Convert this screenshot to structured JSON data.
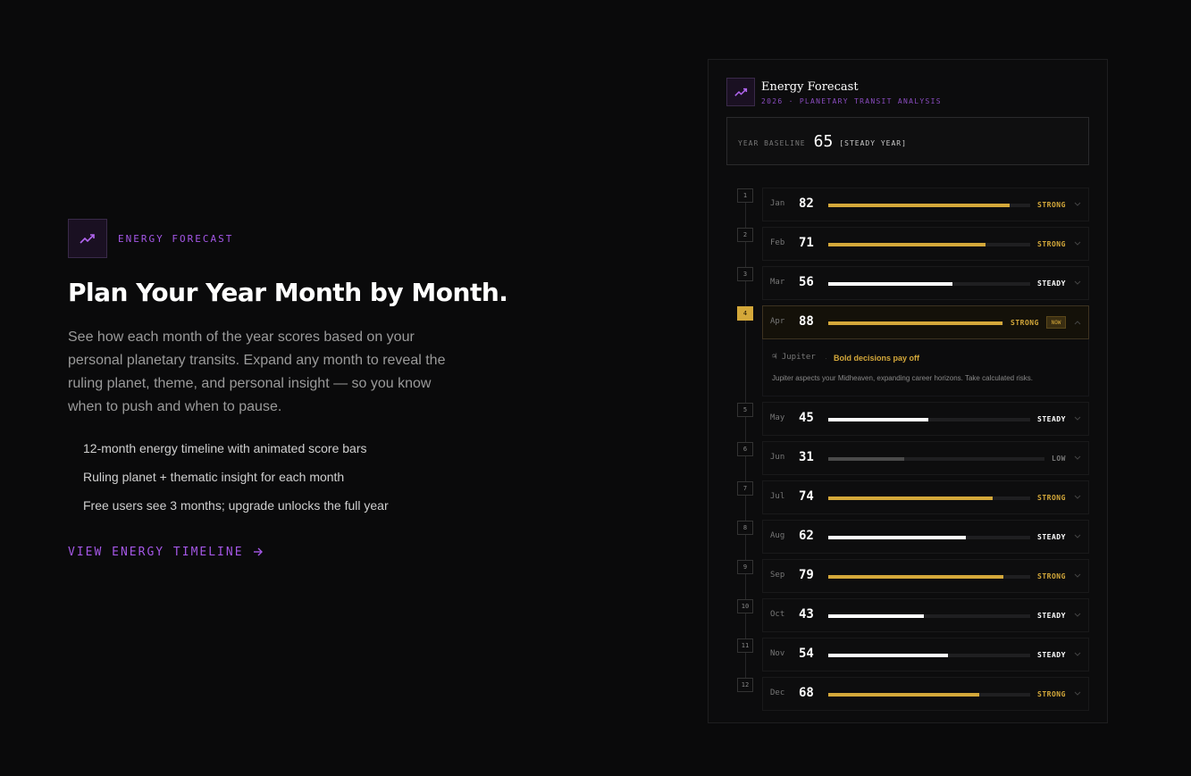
{
  "intro": {
    "eyebrow": "ENERGY FORECAST",
    "headline": "Plan Your Year Month by Month.",
    "description": "See how each month of the year scores based on your personal planetary transits. Expand any month to reveal the ruling planet, theme, and personal insight — so you know when to push and when to pause.",
    "features": [
      "12-month energy timeline with animated score bars",
      "Ruling planet + thematic insight for each month",
      "Free users see 3 months; upgrade unlocks the full year"
    ],
    "cta": "VIEW ENERGY TIMELINE",
    "icon": "trend-up-icon"
  },
  "panel": {
    "title": "Energy Forecast",
    "subtitle": "2026 · PLANETARY TRANSIT ANALYSIS",
    "baseline_label": "YEAR BASELINE",
    "baseline_value": "65",
    "baseline_tag": "[STEADY YEAR]",
    "now_badge": "NOW",
    "expanded": {
      "planet_glyph": "♃",
      "planet": "Jupiter",
      "separator": "·",
      "theme": "Bold decisions pay off",
      "insight": "Jupiter aspects your Midheaven, expanding career horizons. Take calculated risks."
    }
  },
  "colors": {
    "accent_purple": "#a457e6",
    "strong": "#d4a83a",
    "steady": "#ffffff",
    "low": "#4a4a4a"
  },
  "chart_data": {
    "type": "bar",
    "categories": [
      "Jan",
      "Feb",
      "Mar",
      "Apr",
      "May",
      "Jun",
      "Jul",
      "Aug",
      "Sep",
      "Oct",
      "Nov",
      "Dec"
    ],
    "values": [
      82,
      71,
      56,
      88,
      45,
      31,
      74,
      62,
      79,
      43,
      54,
      68
    ],
    "xlim": [
      0,
      100
    ],
    "labels": [
      "STRONG",
      "STRONG",
      "STEADY",
      "STRONG",
      "STEADY",
      "LOW",
      "STRONG",
      "STEADY",
      "STRONG",
      "STEADY",
      "STEADY",
      "STRONG"
    ],
    "numbers": [
      "1",
      "2",
      "3",
      "4",
      "5",
      "6",
      "7",
      "8",
      "9",
      "10",
      "11",
      "12"
    ],
    "current_month": "Apr"
  }
}
